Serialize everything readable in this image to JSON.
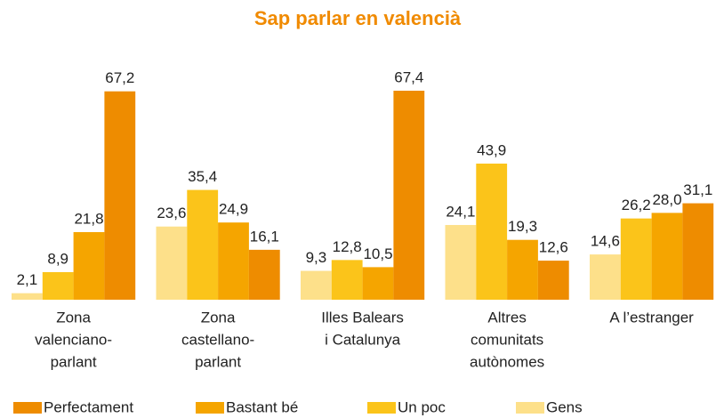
{
  "chart_data": {
    "type": "bar",
    "title": "Sap parlar en valencià",
    "categories": [
      [
        "Zona",
        "valenciano-",
        "parlant"
      ],
      [
        "Zona",
        "castellano-",
        "parlant"
      ],
      [
        "Illes Balears",
        "i Catalunya"
      ],
      [
        "Altres",
        "comunitats",
        "autònomes"
      ],
      [
        "A l’estranger"
      ]
    ],
    "series": [
      {
        "name": "Gens",
        "color": "#fde08a",
        "values": [
          2.1,
          23.6,
          9.3,
          24.1,
          14.6
        ],
        "value_labels": [
          "2,1",
          "23,6",
          "9,3",
          "24,1",
          "14,6"
        ]
      },
      {
        "name": "Un poc",
        "color": "#fbc41a",
        "values": [
          8.9,
          35.4,
          12.8,
          43.9,
          26.2
        ],
        "value_labels": [
          "8,9",
          "35,4",
          "12,8",
          "43,9",
          "26,2"
        ]
      },
      {
        "name": "Bastant bé",
        "color": "#f5a500",
        "values": [
          21.8,
          24.9,
          10.5,
          19.3,
          28.0
        ],
        "value_labels": [
          "21,8",
          "24,9",
          "10,5",
          "19,3",
          "28,0"
        ]
      },
      {
        "name": "Perfectament",
        "color": "#ee8c00",
        "values": [
          67.2,
          16.1,
          67.4,
          12.6,
          31.1
        ],
        "value_labels": [
          "67,2",
          "16,1",
          "67,4",
          "12,6",
          "31,1"
        ]
      }
    ]
  }
}
